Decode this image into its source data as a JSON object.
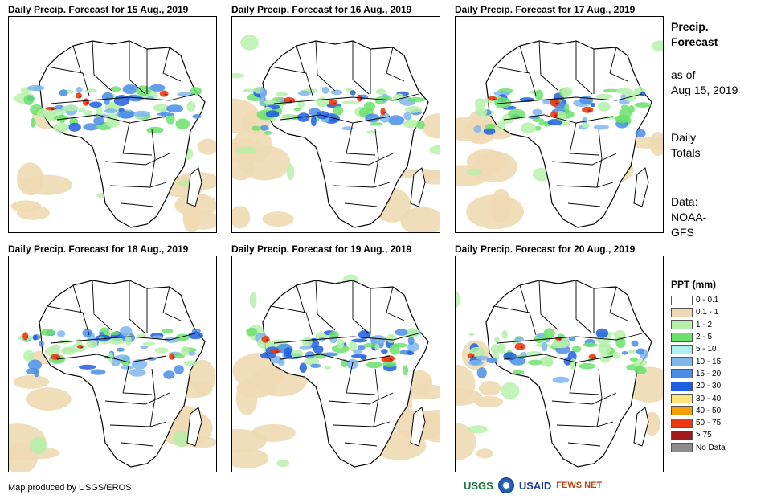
{
  "panels": [
    {
      "title": "Daily Precip. Forecast for 15 Aug., 2019"
    },
    {
      "title": "Daily Precip. Forecast for 16 Aug., 2019"
    },
    {
      "title": "Daily Precip. Forecast for 17 Aug., 2019"
    },
    {
      "title": "Daily Precip. Forecast for 18 Aug., 2019"
    },
    {
      "title": "Daily Precip. Forecast for 19 Aug., 2019"
    },
    {
      "title": "Daily Precip. Forecast for 20 Aug., 2019"
    }
  ],
  "sidebar": {
    "title_line1": "Precip.",
    "title_line2": "Forecast",
    "asof_line1": "as of",
    "asof_line2": "Aug 15, 2019",
    "daily_line1": "Daily",
    "daily_line2": "Totals",
    "data_line1": "Data:",
    "data_line2": "NOAA-",
    "data_line3": "GFS"
  },
  "legend": {
    "title": "PPT (mm)",
    "items": [
      {
        "label": "0 - 0.1",
        "color": "#ffffff"
      },
      {
        "label": "0.1 - 1",
        "color": "#eed9b3"
      },
      {
        "label": "1 - 2",
        "color": "#b4f0a8"
      },
      {
        "label": "2 - 5",
        "color": "#6be06b"
      },
      {
        "label": "5 - 10",
        "color": "#aeeff0"
      },
      {
        "label": "10 - 15",
        "color": "#7fb6ee"
      },
      {
        "label": "15 - 20",
        "color": "#4a8de6"
      },
      {
        "label": "20 - 30",
        "color": "#1e5ee0"
      },
      {
        "label": "30 - 40",
        "color": "#fbe57a"
      },
      {
        "label": "40 - 50",
        "color": "#f5a000"
      },
      {
        "label": "50 - 75",
        "color": "#ec3a10"
      },
      {
        "label": "> 75",
        "color": "#a01818"
      },
      {
        "label": "No Data",
        "color": "#8c8c8c"
      }
    ]
  },
  "footer": {
    "credit": "Map produced by USGS/EROS",
    "logos": [
      "USGS",
      "NOAA",
      "USAID",
      "FEWS NET"
    ]
  }
}
